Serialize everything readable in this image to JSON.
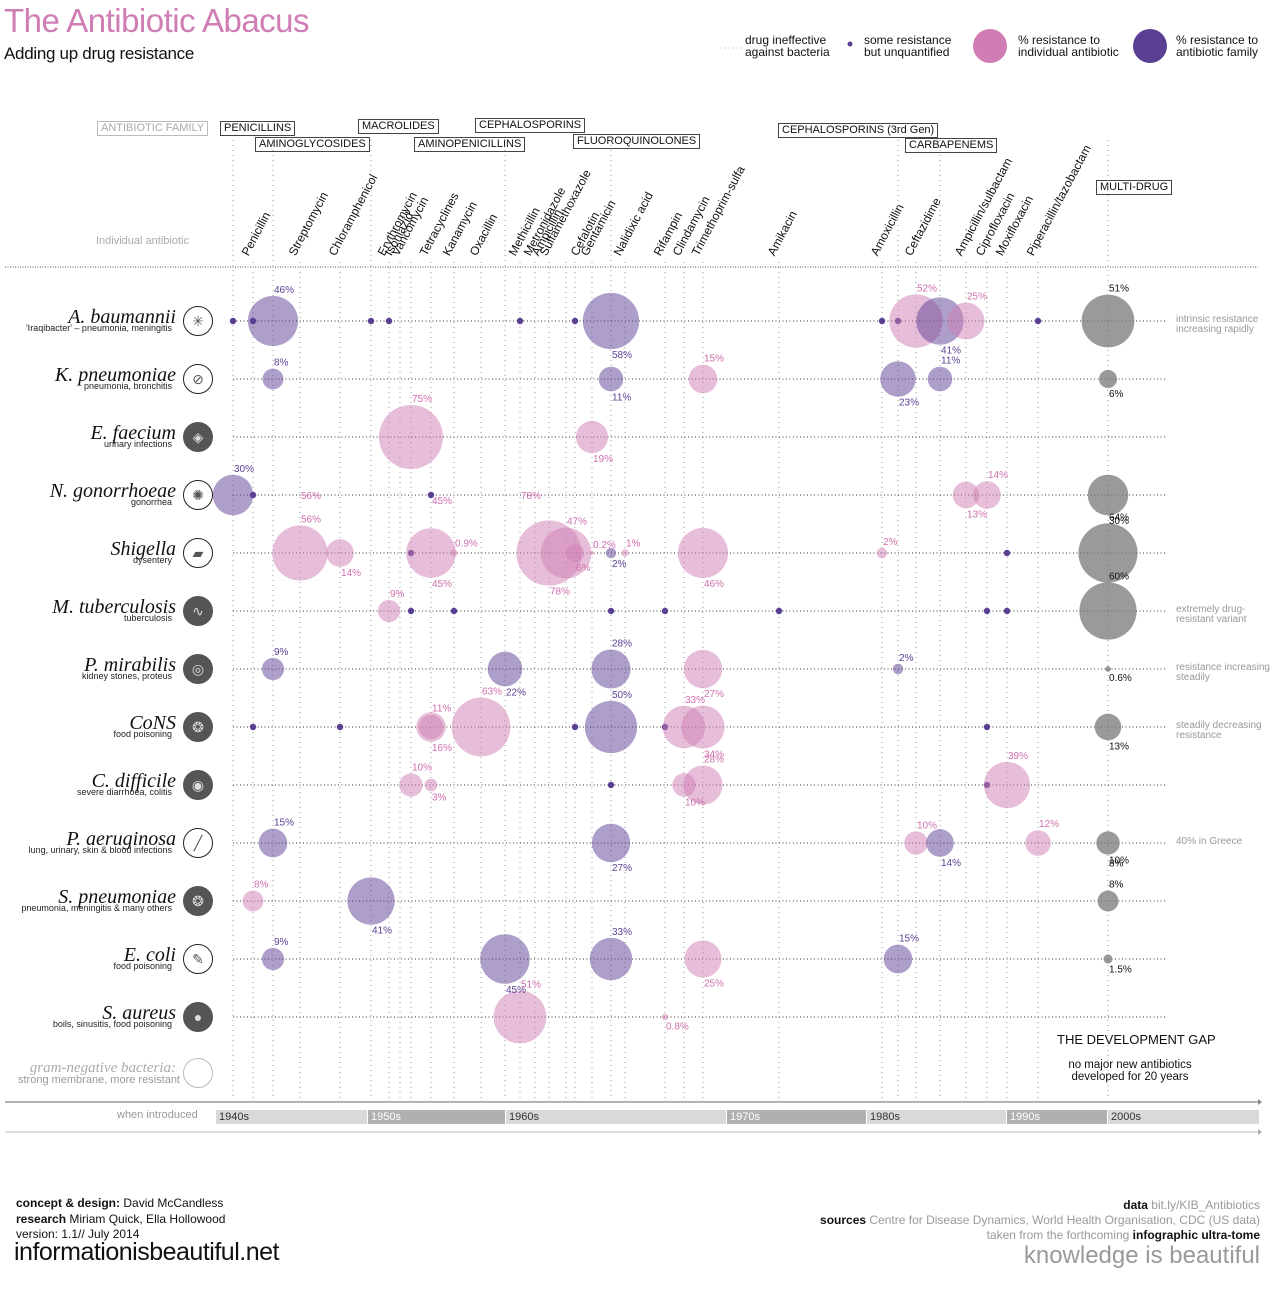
{
  "header": {
    "title": "The Antibiotic Abacus",
    "subtitle": "Adding up drug resistance"
  },
  "legend": {
    "ineffective": [
      "drug ineffective",
      "against bacteria"
    ],
    "unquantified": [
      "some resistance",
      "but unquantified"
    ],
    "individual": [
      "% resistance to",
      "individual antibiotic"
    ],
    "family": [
      "% resistance to",
      "antibiotic family"
    ]
  },
  "colors": {
    "individual": "#cf7db4",
    "family": "#5b3f93",
    "multi": "#8a8a8a",
    "title": "#cf7db4"
  },
  "labels": {
    "antibiotic_family": "ANTIBIOTIC FAMILY",
    "individual_antibiotic": "Individual antibiotic",
    "when_introduced": "when introduced",
    "gram_negative_title": "gram-negative bacteria:",
    "gram_negative_sub": "strong membrane, more resistant",
    "dev_gap_title": "THE DEVELOPMENT GAP",
    "dev_gap_line1": "no major new antibiotics",
    "dev_gap_line2": "developed for 20 years"
  },
  "families": [
    {
      "name": "PENICILLINS",
      "col": 0
    },
    {
      "name": "AMINOGLYCOSIDES",
      "col": 2
    },
    {
      "name": "MACROLIDES",
      "col": 5
    },
    {
      "name": "AMINOPENICILLINS",
      "col": 12
    },
    {
      "name": "CEPHALOSPORINS",
      "col": 16
    },
    {
      "name": "FLUOROQUINOLONES",
      "col": 19
    },
    {
      "name": "CEPHALOSPORINS (3rd Gen)",
      "col": 25
    },
    {
      "name": "CARBAPENEMS",
      "col": 28
    },
    {
      "name": "MULTI-DRUG",
      "col": 33
    }
  ],
  "drugs": [
    "Penicillin",
    "Streptomycin",
    "Chloramphenicol",
    "Erythromycin",
    "Isoniazid",
    "Vancomycin",
    "Tetracyclines",
    "Kanamycin",
    "Oxacillin",
    "Methicillin",
    "Metronidazole",
    "Ampicillin",
    "Sulfamethoxazole",
    "Cefalotin",
    "Gentamicin",
    "Nalidixic acid",
    "Rifampin",
    "Clindamycin",
    "Trimethoprim-sulfa",
    "Amikacin",
    "Amoxicillin",
    "Ceftazidime",
    "Ampicillin/sulbactam",
    "Ciprofloxacin",
    "Moxifloxacin",
    "Piperacillin/tazobactam"
  ],
  "decades": [
    "1940s",
    "1950s",
    "1960s",
    "1970s",
    "1980s",
    "1990s",
    "2000s"
  ],
  "chart_data": {
    "type": "bubble-matrix",
    "title": "The Antibiotic Abacus",
    "subtitle": "Adding up drug resistance",
    "xlabel": "when introduced",
    "value_unit": "% resistance",
    "bacteria": [
      {
        "name": "A. baumannii",
        "desc": "'Iraqibacter' – pneumonia, meningitis",
        "icon": "bacterium-icon",
        "gram_negative": true,
        "note": "intrinsic resistance increasing rapidly",
        "points": [
          {
            "drug": "Penicillins (family)",
            "type": "unquantified"
          },
          {
            "drug": "Penicillin",
            "type": "unquantified"
          },
          {
            "drug": "Aminoglycosides (family)",
            "type": "family",
            "value": 46
          },
          {
            "drug": "Macrolides (family)",
            "type": "unquantified"
          },
          {
            "drug": "Erythromycin",
            "type": "unquantified"
          },
          {
            "drug": "Methicillin",
            "type": "unquantified"
          },
          {
            "drug": "Cephalosporins (family)",
            "type": "unquantified"
          },
          {
            "drug": "Fluoroquinolones (family)",
            "type": "family",
            "value": 58
          },
          {
            "drug": "Amoxicillin",
            "type": "unquantified"
          },
          {
            "drug": "Cephalosporins 3rd Gen (family)",
            "type": "unquantified"
          },
          {
            "drug": "Ceftazidime",
            "type": "individual",
            "value": 52
          },
          {
            "drug": "Carbapenems (family)",
            "type": "family",
            "value": 41
          },
          {
            "drug": "Ampicillin/sulbactam",
            "type": "individual",
            "value": 25
          },
          {
            "drug": "Piperacillin/tazobactam",
            "type": "unquantified"
          },
          {
            "drug": "Multi-drug",
            "type": "multi",
            "value": 51
          }
        ]
      },
      {
        "name": "K. pneumoniae",
        "desc": "pneumonia, bronchitis",
        "icon": "paperclip-bacterium-icon",
        "gram_negative": true,
        "points": [
          {
            "drug": "Aminoglycosides (family)",
            "type": "family",
            "value": 8
          },
          {
            "drug": "Fluoroquinolones (family)",
            "type": "family",
            "value": 11
          },
          {
            "drug": "Trimethoprim-sulfa",
            "type": "individual",
            "value": 15
          },
          {
            "drug": "Cephalosporins 3rd Gen (family)",
            "type": "family",
            "value": 23
          },
          {
            "drug": "Carbapenems (family)",
            "type": "family",
            "value": 11
          },
          {
            "drug": "Multi-drug",
            "type": "multi",
            "value": 6
          }
        ]
      },
      {
        "name": "E. faecium",
        "desc": "urinary infections",
        "icon": "bacterium-icon",
        "gram_negative": false,
        "points": [
          {
            "drug": "Vancomycin",
            "type": "individual",
            "value": 75
          },
          {
            "drug": "Gentamicin",
            "type": "individual",
            "value": 19
          }
        ]
      },
      {
        "name": "N. gonorrhoeae",
        "desc": "gonorrhea",
        "icon": "bacterium-icon",
        "gram_negative": true,
        "points": [
          {
            "drug": "Penicillins (family)",
            "type": "family",
            "value": 30
          },
          {
            "drug": "Penicillin",
            "type": "unquantified"
          },
          {
            "drug": "Streptomycin",
            "type": "individual",
            "value": 56,
            "label_only": true
          },
          {
            "drug": "Tetracyclines",
            "type": "unquantified",
            "value": 45
          },
          {
            "drug": "Methicillin",
            "type": "individual",
            "value": 78,
            "label_only": true
          },
          {
            "drug": "Ampicillin/sulbactam",
            "type": "individual",
            "value": 13
          },
          {
            "drug": "Ciprofloxacin",
            "type": "individual",
            "value": 14
          },
          {
            "drug": "Multi-drug",
            "type": "multi",
            "value": 30
          }
        ]
      },
      {
        "name": "Shigella",
        "desc": "dysentery",
        "icon": "bacterium-icon",
        "gram_negative": true,
        "points": [
          {
            "drug": "Streptomycin",
            "type": "individual",
            "value": 56
          },
          {
            "drug": "Chloramphenicol",
            "type": "individual",
            "value": 14
          },
          {
            "drug": "Vancomycin",
            "type": "unquantified"
          },
          {
            "drug": "Tetracyclines",
            "type": "individual",
            "value": 45
          },
          {
            "drug": "Kanamycin",
            "type": "individual",
            "value": 0.9
          },
          {
            "drug": "Ampicillin",
            "type": "individual",
            "value": 78
          },
          {
            "drug": "Sulfamethoxazole",
            "type": "individual",
            "value": 47
          },
          {
            "drug": "Cefalotin",
            "type": "individual",
            "value": 6
          },
          {
            "drug": "Gentamicin",
            "type": "individual",
            "value": 0.2
          },
          {
            "drug": "Fluoroquinolones (family)",
            "type": "family",
            "value": 2
          },
          {
            "drug": "Nalidixic acid",
            "type": "individual",
            "value": 1
          },
          {
            "drug": "Trimethoprim-sulfa",
            "type": "individual",
            "value": 46
          },
          {
            "drug": "Amoxicillin",
            "type": "individual",
            "value": 2
          },
          {
            "drug": "Moxifloxacin",
            "type": "unquantified"
          },
          {
            "drug": "Multi-drug",
            "type": "multi",
            "value": 64
          }
        ]
      },
      {
        "name": "M. tuberculosis",
        "desc": "tuberculosis",
        "icon": "bacterium-icon",
        "gram_negative": false,
        "note": "extremely drug-resistant variant",
        "points": [
          {
            "drug": "Erythromycin",
            "type": "individual",
            "value": 9
          },
          {
            "drug": "Vancomycin",
            "type": "unquantified"
          },
          {
            "drug": "Kanamycin",
            "type": "unquantified"
          },
          {
            "drug": "Fluoroquinolones (family)",
            "type": "unquantified"
          },
          {
            "drug": "Rifampin",
            "type": "unquantified"
          },
          {
            "drug": "Amikacin",
            "type": "unquantified"
          },
          {
            "drug": "Ciprofloxacin",
            "type": "unquantified"
          },
          {
            "drug": "Moxifloxacin",
            "type": "unquantified"
          },
          {
            "drug": "Multi-drug",
            "type": "multi",
            "value": 60
          }
        ]
      },
      {
        "name": "P. mirabilis",
        "desc": "kidney stones, proteus",
        "icon": "bacterium-icon",
        "gram_negative": true,
        "note": "resistance increasing steadily",
        "points": [
          {
            "drug": "Aminoglycosides (family)",
            "type": "family",
            "value": 9
          },
          {
            "drug": "Aminopenicillins (family)",
            "type": "family",
            "value": 22
          },
          {
            "drug": "Fluoroquinolones (family)",
            "type": "family",
            "value": 28
          },
          {
            "drug": "Trimethoprim-sulfa",
            "type": "individual",
            "value": 27
          },
          {
            "drug": "Cephalosporins 3rd Gen (family)",
            "type": "family",
            "value": 2
          },
          {
            "drug": "Multi-drug",
            "type": "multi",
            "value": 0.6
          }
        ]
      },
      {
        "name": "CoNS",
        "desc": "food poisoning",
        "icon": "bacterium-icon",
        "gram_negative": false,
        "note": "steadily decreasing resistance",
        "points": [
          {
            "drug": "Penicillin",
            "type": "unquantified"
          },
          {
            "drug": "Chloramphenicol",
            "type": "unquantified"
          },
          {
            "drug": "Tetracyclines",
            "type": "individual",
            "value": 11
          },
          {
            "drug": "Tetracyclines ",
            "type": "individual",
            "value": 16
          },
          {
            "drug": "Oxacillin",
            "type": "individual",
            "value": 63
          },
          {
            "drug": "Cefalotin",
            "type": "unquantified"
          },
          {
            "drug": "Fluoroquinolones (family)",
            "type": "family",
            "value": 50
          },
          {
            "drug": "Rifampin",
            "type": "unquantified"
          },
          {
            "drug": "Clindamycin",
            "type": "individual",
            "value": 33
          },
          {
            "drug": "Trimethoprim-sulfa",
            "type": "individual",
            "value": 34
          },
          {
            "drug": "Ciprofloxacin",
            "type": "unquantified"
          },
          {
            "drug": "Multi-drug",
            "type": "multi",
            "value": 13
          }
        ]
      },
      {
        "name": "C. difficile",
        "desc": "severe diarrhoea, colitis",
        "icon": "bacterium-icon",
        "gram_negative": false,
        "points": [
          {
            "drug": "Vancomycin",
            "type": "individual",
            "value": 10
          },
          {
            "drug": "Tetracyclines",
            "type": "individual",
            "value": 3
          },
          {
            "drug": "Fluoroquinolones (family)",
            "type": "unquantified"
          },
          {
            "drug": "Clindamycin",
            "type": "individual",
            "value": 10
          },
          {
            "drug": "Trimethoprim-sulfa",
            "type": "individual",
            "value": 28
          },
          {
            "drug": "Ciprofloxacin",
            "type": "unquantified"
          },
          {
            "drug": "Moxifloxacin",
            "type": "individual",
            "value": 39
          }
        ]
      },
      {
        "name": "P. aeruginosa",
        "desc": "lung, urinary, skin & blood infections",
        "icon": "bacterium-icon",
        "gram_negative": true,
        "note": "40% in Greece",
        "points": [
          {
            "drug": "Aminoglycosides (family)",
            "type": "family",
            "value": 15
          },
          {
            "drug": "Fluoroquinolones (family)",
            "type": "family",
            "value": 27
          },
          {
            "drug": "Ceftazidime",
            "type": "individual",
            "value": 10
          },
          {
            "drug": "Carbapenems (family)",
            "type": "family",
            "value": 14
          },
          {
            "drug": "Piperacillin/tazobactam",
            "type": "individual",
            "value": 12
          },
          {
            "drug": "Multi-drug",
            "type": "multi",
            "value": 10,
            "alt": 8
          }
        ]
      },
      {
        "name": "S. pneumoniae",
        "desc": "pneumonia, meningitis & many others",
        "icon": "bacterium-icon",
        "gram_negative": false,
        "points": [
          {
            "drug": "Penicillin",
            "type": "individual",
            "value": 8
          },
          {
            "drug": "Macrolides (family)",
            "type": "family",
            "value": 41
          },
          {
            "drug": "Multi-drug",
            "type": "multi",
            "value": 8
          }
        ]
      },
      {
        "name": "E. coli",
        "desc": "food poisoning",
        "icon": "bacterium-icon",
        "gram_negative": true,
        "points": [
          {
            "drug": "Aminoglycosides (family)",
            "type": "family",
            "value": 9
          },
          {
            "drug": "Aminopenicillins (family)",
            "type": "family",
            "value": 45
          },
          {
            "drug": "Fluoroquinolones (family)",
            "type": "family",
            "value": 33
          },
          {
            "drug": "Trimethoprim-sulfa",
            "type": "individual",
            "value": 25
          },
          {
            "drug": "Cephalosporins 3rd Gen (family)",
            "type": "family",
            "value": 15
          },
          {
            "drug": "Multi-drug",
            "type": "multi",
            "value": 1.5
          }
        ]
      },
      {
        "name": "S. aureus",
        "desc": "boils, sinusitis, food poisoning",
        "icon": "bacterium-icon",
        "gram_negative": false,
        "points": [
          {
            "drug": "Methicillin",
            "type": "individual",
            "value": 51
          },
          {
            "drug": "Rifampin",
            "type": "individual",
            "value": 0.8
          }
        ]
      }
    ]
  },
  "footer": {
    "concept_label": "concept & design:",
    "concept_value": "David McCandless",
    "research_label": "research",
    "research_value": "Miriam Quick, Ella Hollowood",
    "version": "version: 1.1// July 2014",
    "site": "informationisbeautiful.net",
    "data_label": "data",
    "data_value": "bit.ly/KIB_Antibiotics",
    "sources_label": "sources",
    "sources_value": "Centre for Disease Dynamics, World Health Organisation, CDC (US data)",
    "taken_from": "taken from the forthcoming",
    "book": "infographic ultra-tome",
    "tagline": "knowledge is beautiful"
  }
}
